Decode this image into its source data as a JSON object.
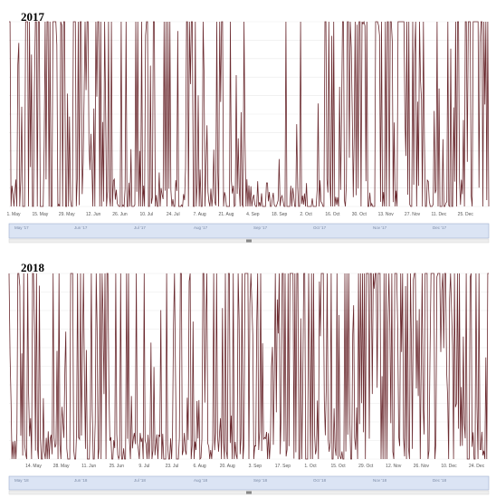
{
  "colors": {
    "series": "#6b2a2f",
    "grid": "#e9e9e9",
    "navigator_bg": "#dbe4f4",
    "navigator_border": "#9fb0cf"
  },
  "chart_data": [
    {
      "type": "line",
      "title": "2017",
      "xlabel": "",
      "ylabel": "",
      "grid": true,
      "legend": "none",
      "xlim": [
        "2017-05-01",
        "2018-01-02"
      ],
      "ylim": [
        0,
        1
      ],
      "x_tick_labels": [
        "1. May",
        "15. May",
        "29. May",
        "12. Jun",
        "26. Jun",
        "10. Jul",
        "24. Jul",
        "7. Aug",
        "21. Aug",
        "4. Sep",
        "18. Sep",
        "2. Oct",
        "16. Oct",
        "30. Oct",
        "13. Nov",
        "27. Nov",
        "11. Dec",
        "25. Dec"
      ],
      "navigator_labels": [
        "May '17",
        "Jun '17",
        "Jul '17",
        "Aug '17",
        "Sep '17",
        "Oct '17",
        "Nov '17",
        "Dec '17"
      ],
      "series": [
        {
          "values_by_interval": [
            {
              "from": "2017-05-01",
              "to": "2017-05-09",
              "mean": 0.45
            },
            {
              "from": "2017-05-09",
              "to": "2017-05-23",
              "mean": 0.6
            },
            {
              "from": "2017-05-23",
              "to": "2017-06-09",
              "mean": 0.55
            },
            {
              "from": "2017-06-09",
              "to": "2017-06-18",
              "mean": 0.9
            },
            {
              "from": "2017-06-18",
              "to": "2017-07-01",
              "mean": 0.35
            },
            {
              "from": "2017-07-01",
              "to": "2017-07-20",
              "mean": 0.45
            },
            {
              "from": "2017-07-20",
              "to": "2017-08-10",
              "mean": 0.3
            },
            {
              "from": "2017-08-10",
              "to": "2017-09-01",
              "mean": 0.25
            },
            {
              "from": "2017-09-01",
              "to": "2017-10-10",
              "mean": 0.15
            },
            {
              "from": "2017-10-10",
              "to": "2017-10-31",
              "mean": 0.6
            },
            {
              "from": "2017-10-31",
              "to": "2017-11-05",
              "mean": 0.3
            },
            {
              "from": "2017-11-05",
              "to": "2017-11-27",
              "mean": 0.62
            },
            {
              "from": "2017-11-27",
              "to": "2017-12-20",
              "mean": 0.4
            },
            {
              "from": "2017-12-20",
              "to": "2018-01-02",
              "mean": 0.55
            }
          ]
        }
      ]
    },
    {
      "type": "line",
      "title": "2018",
      "xlabel": "",
      "ylabel": "",
      "grid": true,
      "legend": "none",
      "xlim": [
        "2018-04-30",
        "2018-12-31"
      ],
      "ylim": [
        0,
        1
      ],
      "x_tick_labels": [
        "14. May",
        "28. May",
        "11. Jun",
        "25. Jun",
        "9. Jul",
        "23. Jul",
        "6. Aug",
        "20. Aug",
        "3. Sep",
        "17. Sep",
        "1. Oct",
        "15. Oct",
        "29. Oct",
        "12. Nov",
        "26. Nov",
        "10. Dec",
        "24. Dec"
      ],
      "navigator_labels": [
        "May '18",
        "Jun '18",
        "Jul '18",
        "Aug '18",
        "Sep '18",
        "Oct '18",
        "Nov '18",
        "Dec '18"
      ],
      "series": [
        {
          "values_by_interval": [
            {
              "from": "2018-04-30",
              "to": "2018-06-05",
              "mean": 0.45
            },
            {
              "from": "2018-06-05",
              "to": "2018-07-01",
              "mean": 0.35
            },
            {
              "from": "2018-07-01",
              "to": "2018-07-23",
              "mean": 0.2
            },
            {
              "from": "2018-07-23",
              "to": "2018-08-15",
              "mean": 0.3
            },
            {
              "from": "2018-08-15",
              "to": "2018-09-15",
              "mean": 0.45
            },
            {
              "from": "2018-09-15",
              "to": "2018-10-15",
              "mean": 0.55
            },
            {
              "from": "2018-10-15",
              "to": "2018-11-01",
              "mean": 0.5
            },
            {
              "from": "2018-11-01",
              "to": "2018-12-20",
              "mean": 0.7
            },
            {
              "from": "2018-12-20",
              "to": "2018-12-31",
              "mean": 0.55
            }
          ]
        }
      ]
    }
  ]
}
